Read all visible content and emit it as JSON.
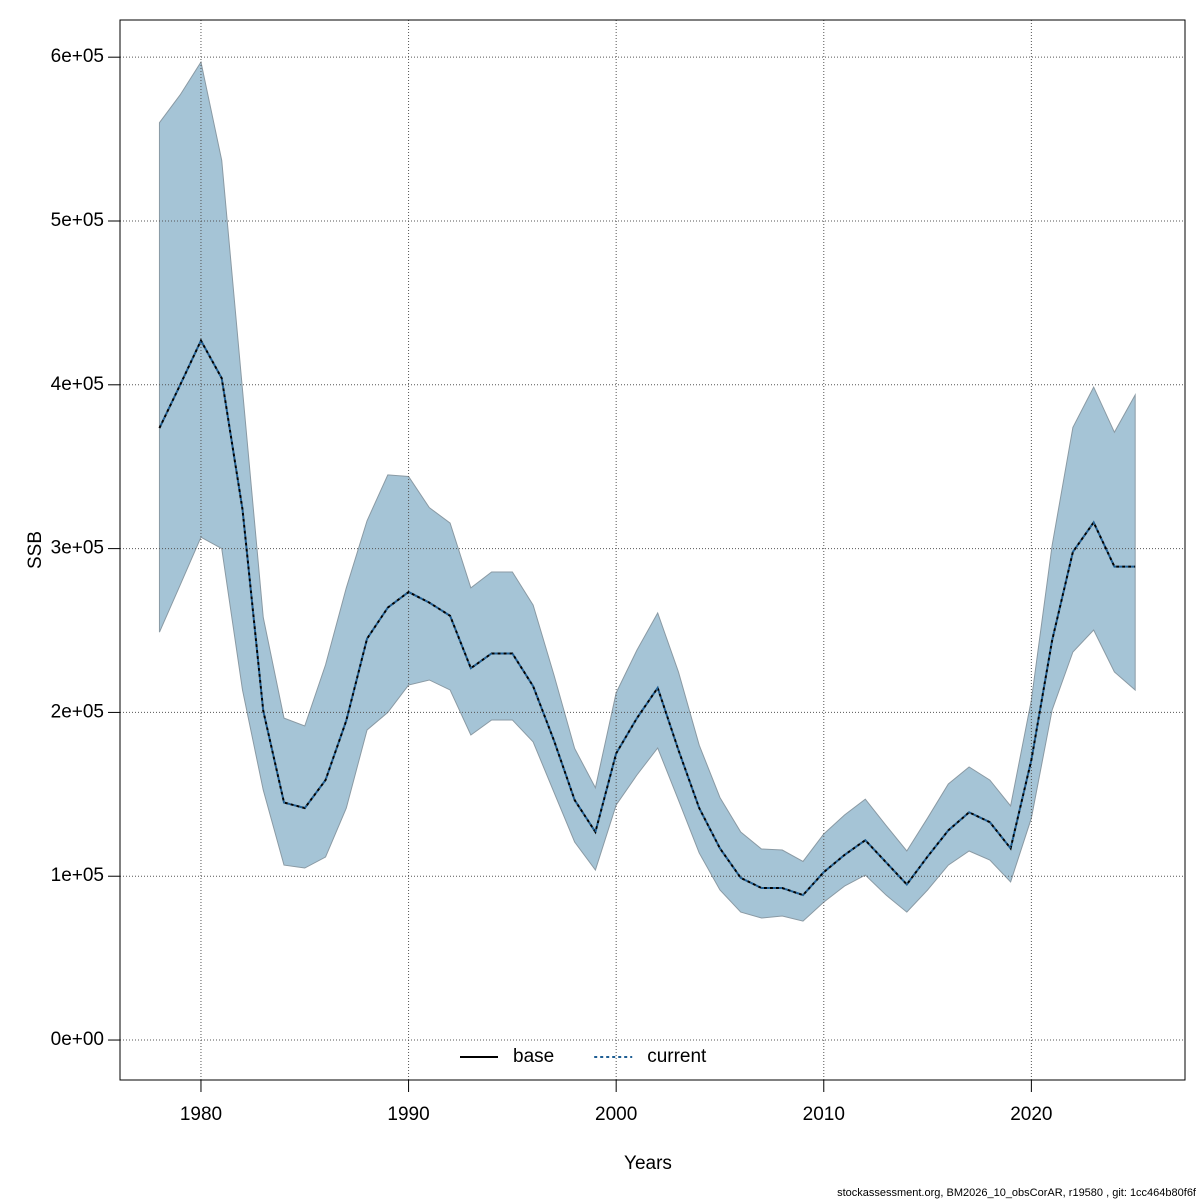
{
  "chart_data": {
    "type": "line",
    "x_label": "Years",
    "y_label": "SSB",
    "x": [
      1978,
      1979,
      1980,
      1981,
      1982,
      1983,
      1984,
      1985,
      1986,
      1987,
      1988,
      1989,
      1990,
      1991,
      1992,
      1993,
      1994,
      1995,
      1996,
      1997,
      1998,
      1999,
      2000,
      2001,
      2002,
      2003,
      2004,
      2005,
      2006,
      2007,
      2008,
      2009,
      2010,
      2011,
      2012,
      2013,
      2014,
      2015,
      2016,
      2017,
      2018,
      2019,
      2020,
      2021,
      2022,
      2023,
      2024,
      2025
    ],
    "series": [
      {
        "name": "current",
        "color": "#1f5f94",
        "line_style": "dotted",
        "band_color": "#a5c4d6",
        "values": [
          373600,
          400000,
          427000,
          404000,
          324000,
          201000,
          145000,
          141600,
          158700,
          195000,
          245000,
          264000,
          273500,
          267000,
          259000,
          227000,
          236000,
          236000,
          216000,
          183000,
          146500,
          127000,
          175000,
          196500,
          215000,
          177000,
          141600,
          117000,
          99000,
          92800,
          92800,
          88500,
          102500,
          113000,
          122000,
          108500,
          95000,
          112000,
          128000,
          139000,
          133000,
          117000,
          171000,
          244000,
          298000,
          316000,
          289000,
          289000
        ],
        "upper": [
          560000,
          577000,
          597000,
          537000,
          397000,
          258000,
          196500,
          191700,
          229000,
          276000,
          317000,
          345000,
          344000,
          325000,
          315600,
          276000,
          285700,
          285700,
          265500,
          223000,
          178000,
          154000,
          212000,
          238000,
          260700,
          224700,
          180000,
          148000,
          127000,
          116600,
          116000,
          109000,
          125800,
          137400,
          147000,
          131000,
          115400,
          135500,
          156300,
          166700,
          158700,
          142900,
          207600,
          302000,
          374000,
          398600,
          371000,
          393800
        ],
        "lower": [
          249000,
          277800,
          307000,
          300000,
          213700,
          152600,
          106800,
          105000,
          111700,
          141600,
          189300,
          200000,
          216700,
          219800,
          213700,
          186200,
          195400,
          195400,
          182000,
          151400,
          120900,
          103800,
          143500,
          161800,
          178300,
          146500,
          114200,
          91600,
          78100,
          74500,
          75700,
          72600,
          84200,
          94000,
          100700,
          88500,
          78100,
          91600,
          106800,
          115400,
          109900,
          96500,
          135500,
          201500,
          236900,
          250300,
          224700,
          213700
        ]
      }
    ],
    "legend": [
      {
        "name": "base",
        "color": "#000000",
        "line_style": "solid"
      },
      {
        "name": "current",
        "color": "#1f5f94",
        "line_style": "dotted"
      }
    ],
    "legend_position": "bottom",
    "xlim": [
      1976.1,
      2027.4
    ],
    "xticks": [
      1980,
      1990,
      2000,
      2010,
      2020
    ],
    "ylim": [
      -24400,
      622700
    ],
    "yticks": [
      {
        "value": 0,
        "label": "0e+00"
      },
      {
        "value": 100000,
        "label": "1e+05"
      },
      {
        "value": 200000,
        "label": "2e+05"
      },
      {
        "value": 300000,
        "label": "3e+05"
      },
      {
        "value": 400000,
        "label": "4e+05"
      },
      {
        "value": 500000,
        "label": "5e+05"
      },
      {
        "value": 600000,
        "label": "6e+05"
      }
    ],
    "grid": true,
    "footnote": "stockassessment.org, BM2026_10_obsCorAR, r19580 , git: 1cc464b80f6f"
  }
}
